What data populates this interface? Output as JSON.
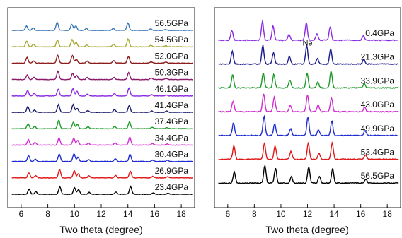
{
  "chart_data": [
    {
      "type": "line",
      "panel": "left",
      "xlabel": "Two theta (degree)",
      "ylabel": "",
      "xlim": [
        5,
        19
      ],
      "xticks": [
        6,
        8,
        10,
        12,
        14,
        16,
        18
      ],
      "grid": false,
      "peaks_2theta": [
        6.5,
        7.0,
        8.8,
        9.9,
        10.2,
        11.0,
        13.0,
        14.1,
        15.8,
        16.9
      ],
      "series": [
        {
          "name": "56.5GPa",
          "color": "#3b78b7"
        },
        {
          "name": "54.5GPa",
          "color": "#a8a832"
        },
        {
          "name": "52.0GPa",
          "color": "#8b1a1a"
        },
        {
          "name": "50.3GPa",
          "color": "#8b1a6b"
        },
        {
          "name": "46.1GPa",
          "color": "#8a2be2"
        },
        {
          "name": "41.4GPa",
          "color": "#1a1a6b"
        },
        {
          "name": "37.4GPa",
          "color": "#1e9a2a"
        },
        {
          "name": "34.4GPa",
          "color": "#d12bd1"
        },
        {
          "name": "30.4GPa",
          "color": "#1e2bd1"
        },
        {
          "name": "26.9GPa",
          "color": "#e01515"
        },
        {
          "name": "23.4GPa",
          "color": "#000000"
        }
      ]
    },
    {
      "type": "line",
      "panel": "right",
      "xlabel": "Two theta (degree)",
      "ylabel": "",
      "xlim": [
        5,
        19
      ],
      "xticks": [
        6,
        8,
        10,
        12,
        14,
        16,
        18
      ],
      "grid": false,
      "peaks_2theta": [
        6.4,
        8.7,
        9.5,
        10.7,
        12.0,
        12.8,
        13.8,
        16.3
      ],
      "annotations": [
        {
          "text": "Ne",
          "x": 12.0,
          "series": "21.3GPa"
        }
      ],
      "series": [
        {
          "name": "0.4GPa",
          "color": "#8a2be2"
        },
        {
          "name": "21.3GPa",
          "color": "#1a1a8b"
        },
        {
          "name": "33.9GPa",
          "color": "#1e9a2a"
        },
        {
          "name": "43.0GPa",
          "color": "#d12bd1"
        },
        {
          "name": "49.9GPa",
          "color": "#1e2bd1"
        },
        {
          "name": "53.4GPa",
          "color": "#e01515"
        },
        {
          "name": "56.5GPa",
          "color": "#000000"
        }
      ]
    }
  ]
}
